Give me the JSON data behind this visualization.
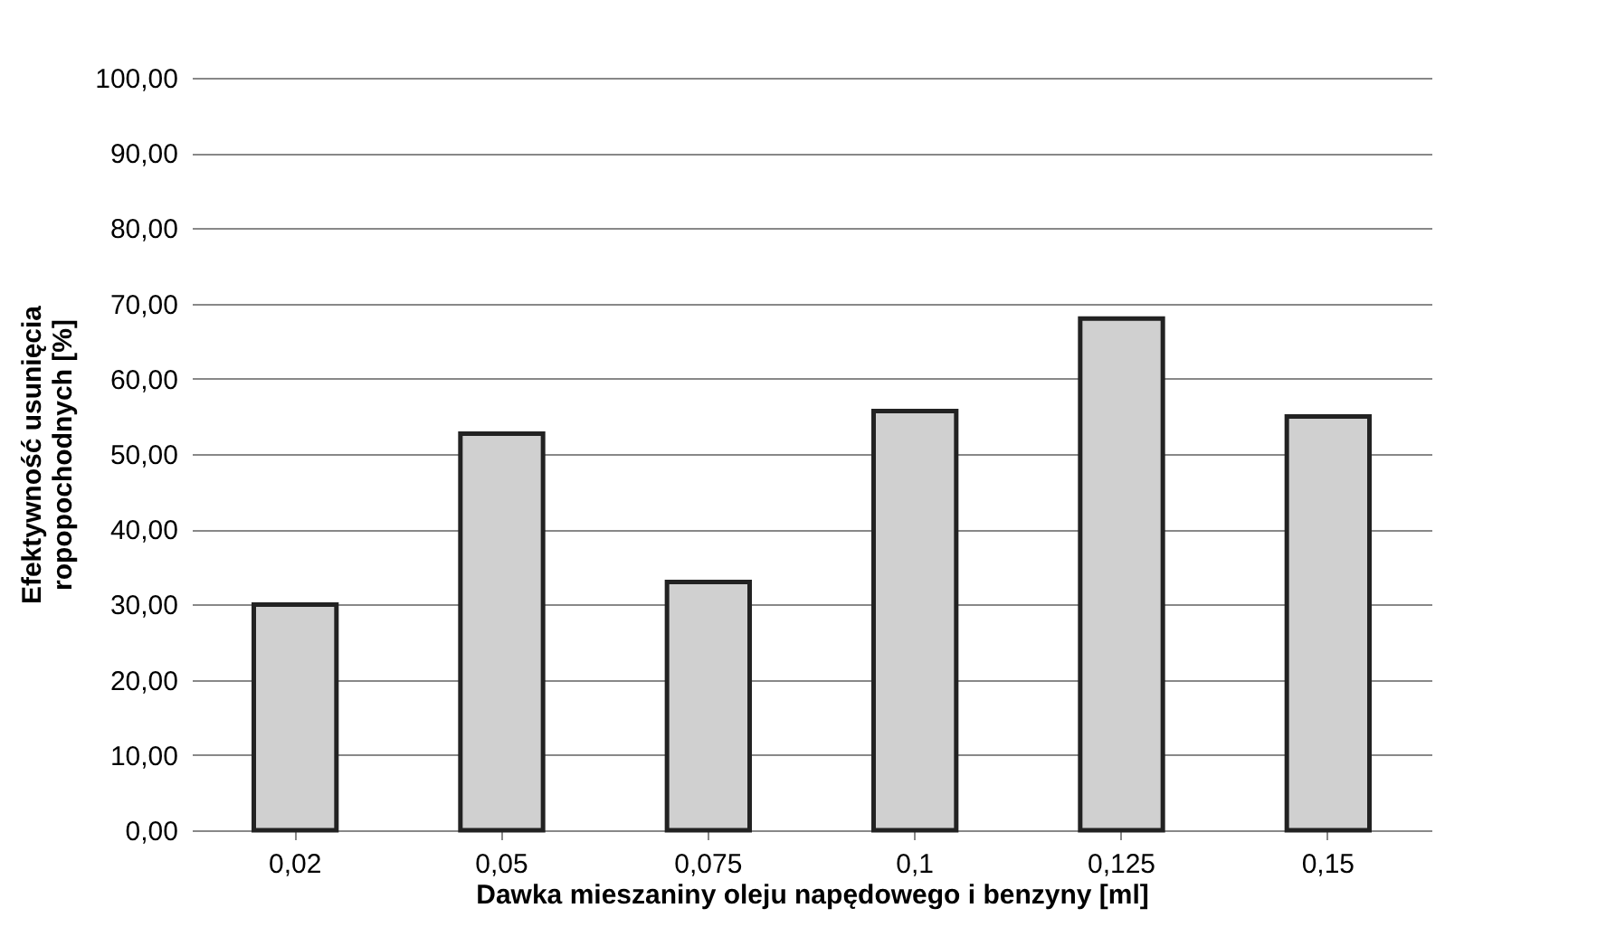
{
  "chart_data": {
    "type": "bar",
    "xlabel": "Dawka mieszaniny oleju napędowego i benzyny [ml]",
    "ylabel": "Efektywność usunięcia\nropopochodnych [%]",
    "categories": [
      "0,02",
      "0,05",
      "0,075",
      "0,1",
      "0,125",
      "0,15"
    ],
    "values": [
      30,
      52.7,
      33,
      55.7,
      68,
      55
    ],
    "color": "#d0d0d0",
    "ylim": [
      0,
      100
    ],
    "yticks": [
      {
        "value": 0,
        "label": "0,00"
      },
      {
        "value": 10,
        "label": "10,00"
      },
      {
        "value": 20,
        "label": "20,00"
      },
      {
        "value": 30,
        "label": "30,00"
      },
      {
        "value": 40,
        "label": "40,00"
      },
      {
        "value": 50,
        "label": "50,00"
      },
      {
        "value": 60,
        "label": "60,00"
      },
      {
        "value": 70,
        "label": "70,00"
      },
      {
        "value": 80,
        "label": "80,00"
      },
      {
        "value": 90,
        "label": "90,00"
      },
      {
        "value": 100,
        "label": "100,00"
      }
    ],
    "grid": "y"
  }
}
